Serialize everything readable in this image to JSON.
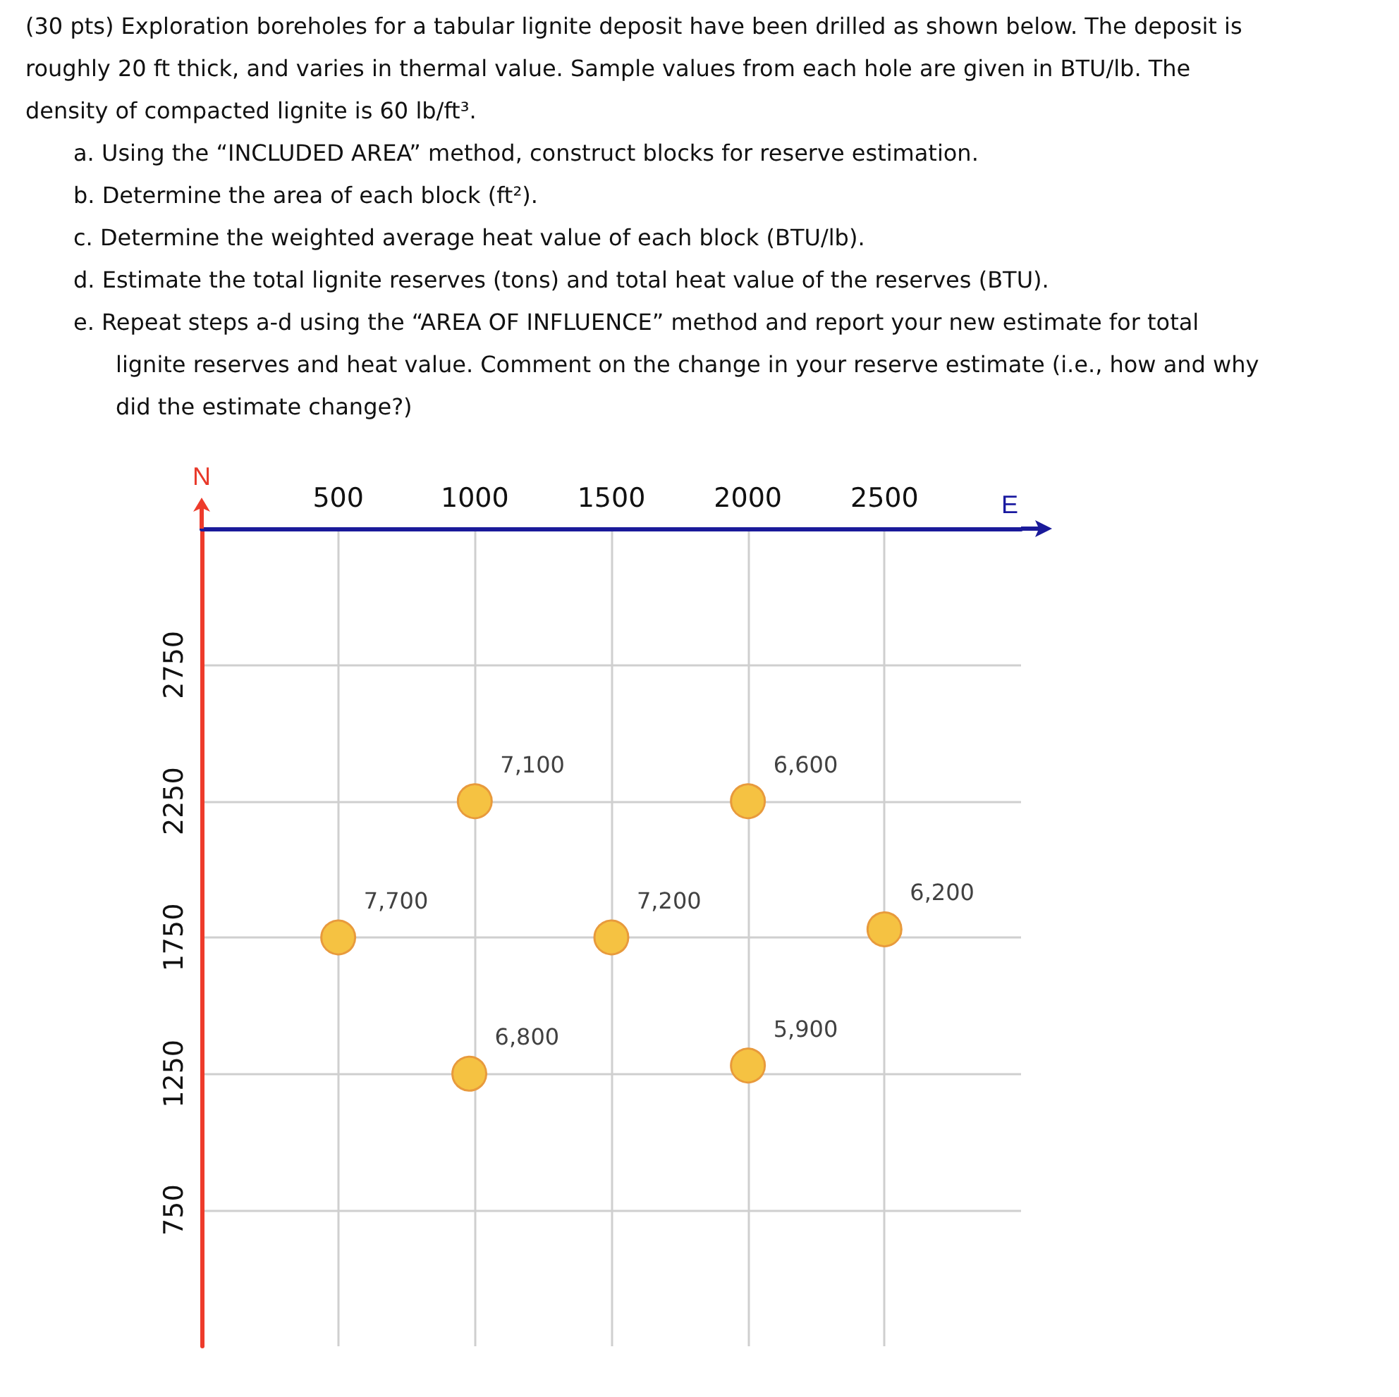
{
  "chart_data": {
    "type": "scatter",
    "title": "(30 pts) Exploration boreholes for a tabular lignite deposit have been drilled as shown below. The deposit is roughly 20 ft thick, and varies in thermal value. Sample values from each hole are given in BTU/lb. The density of compacted lignite is 60 lb/ft³.",
    "annotations": [
      "a. Using the “INCLUDED AREA” method, construct blocks for reserve estimation.",
      "b. Determine the area of each block (ft²).",
      "c. Determine the weighted average heat value of each block (BTU/lb).",
      "d. Estimate the total lignite reserves (tons) and total heat value of the reserves (BTU).",
      "e. Repeat steps a-d using the “AREA OF INFLUENCE” method and report your new estimate for total lignite reserves and heat value. Comment on the change in your reserve estimate (i.e., how and why did the estimate change?)",
      {
        "text": "7,100",
        "x": 1000,
        "y": 2250
      },
      {
        "text": "6,600",
        "x": 2000,
        "y": 2250
      },
      {
        "text": "7,700",
        "x": 500,
        "y": 1750
      },
      {
        "text": "7,200",
        "x": 1500,
        "y": 1750
      },
      {
        "text": "6,200",
        "x": 2500,
        "y": 1780
      },
      {
        "text": "6,800",
        "x": 980,
        "y": 1250
      },
      {
        "text": "5,900",
        "x": 2000,
        "y": 1280
      }
    ],
    "xlabel": "E",
    "ylabel": "N",
    "x": [
      1000,
      2000,
      500,
      1500,
      2500,
      980,
      2000
    ],
    "values": [
      2250,
      2250,
      1750,
      1750,
      1780,
      1250,
      1280
    ],
    "color": "#f5c242",
    "marker": "circle",
    "xlim": [
      0,
      3000
    ],
    "xticks": [
      500,
      1000,
      1500,
      2000,
      2500
    ],
    "ylim": [
      250,
      3250
    ],
    "yticks": [
      750,
      1250,
      1750,
      2250,
      2750
    ],
    "grid": true
  }
}
